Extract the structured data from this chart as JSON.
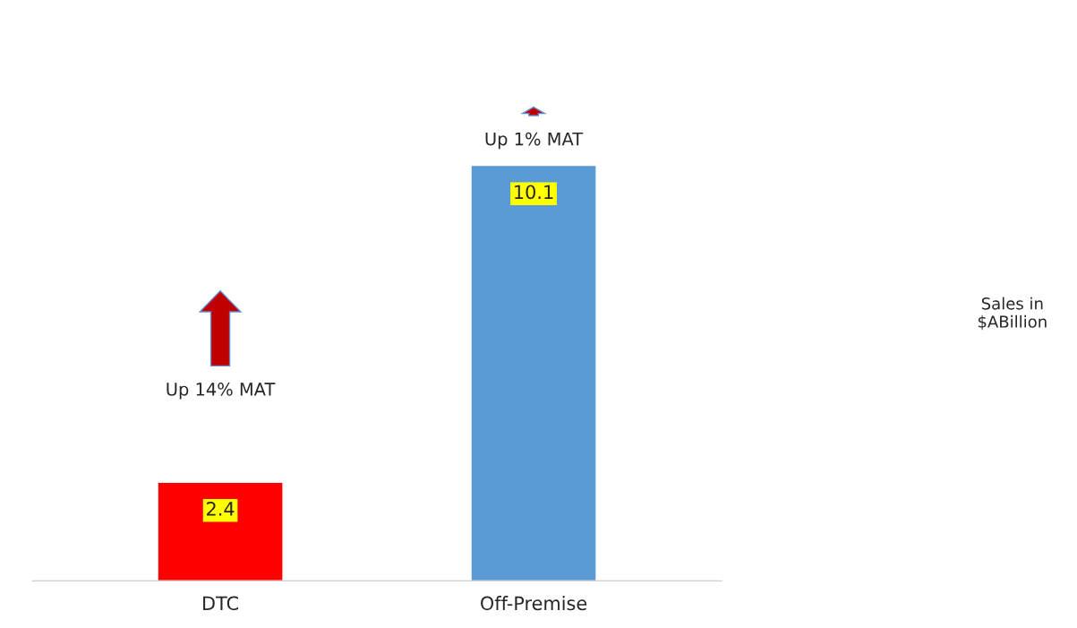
{
  "chart_data": {
    "type": "bar",
    "categories": [
      "DTC",
      "Off-Premise"
    ],
    "values": [
      2.4,
      10.1
    ],
    "colors": [
      "#ff0000",
      "#5b9bd5"
    ],
    "data_labels": true,
    "grid": false,
    "legend": false,
    "tick_labels": "x",
    "annotations": [
      "Up 14% MAT",
      "Up 1% MAT",
      "Sales in $ABillion"
    ]
  }
}
